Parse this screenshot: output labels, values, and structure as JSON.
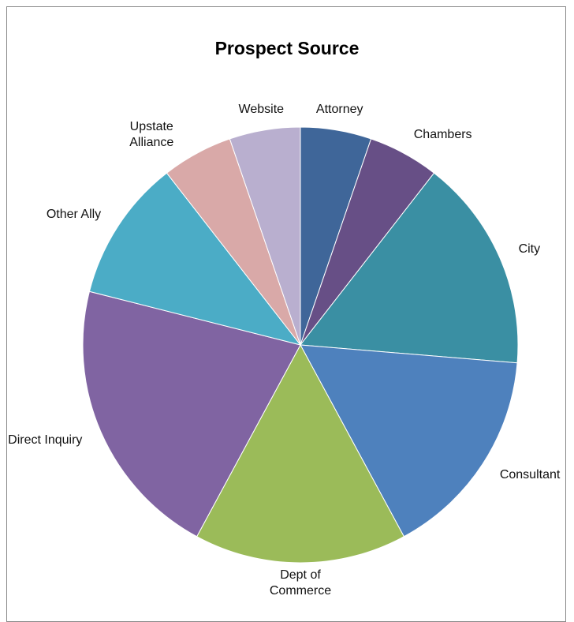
{
  "chart_data": {
    "type": "pie",
    "title": "Prospect Source",
    "categories": [
      "Attorney",
      "Chambers",
      "City",
      "Consultant",
      "Dept of Commerce",
      "Direct Inquiry",
      "Other Ally",
      "Upstate Alliance",
      "Website"
    ],
    "values": [
      1,
      1,
      3,
      3,
      3,
      4,
      2,
      1,
      1
    ],
    "colors": [
      "#3f6699",
      "#674f86",
      "#3a8fa3",
      "#4e81bd",
      "#9bbb59",
      "#8064a2",
      "#4bacc6",
      "#d9a9a8",
      "#b9afcf"
    ]
  }
}
